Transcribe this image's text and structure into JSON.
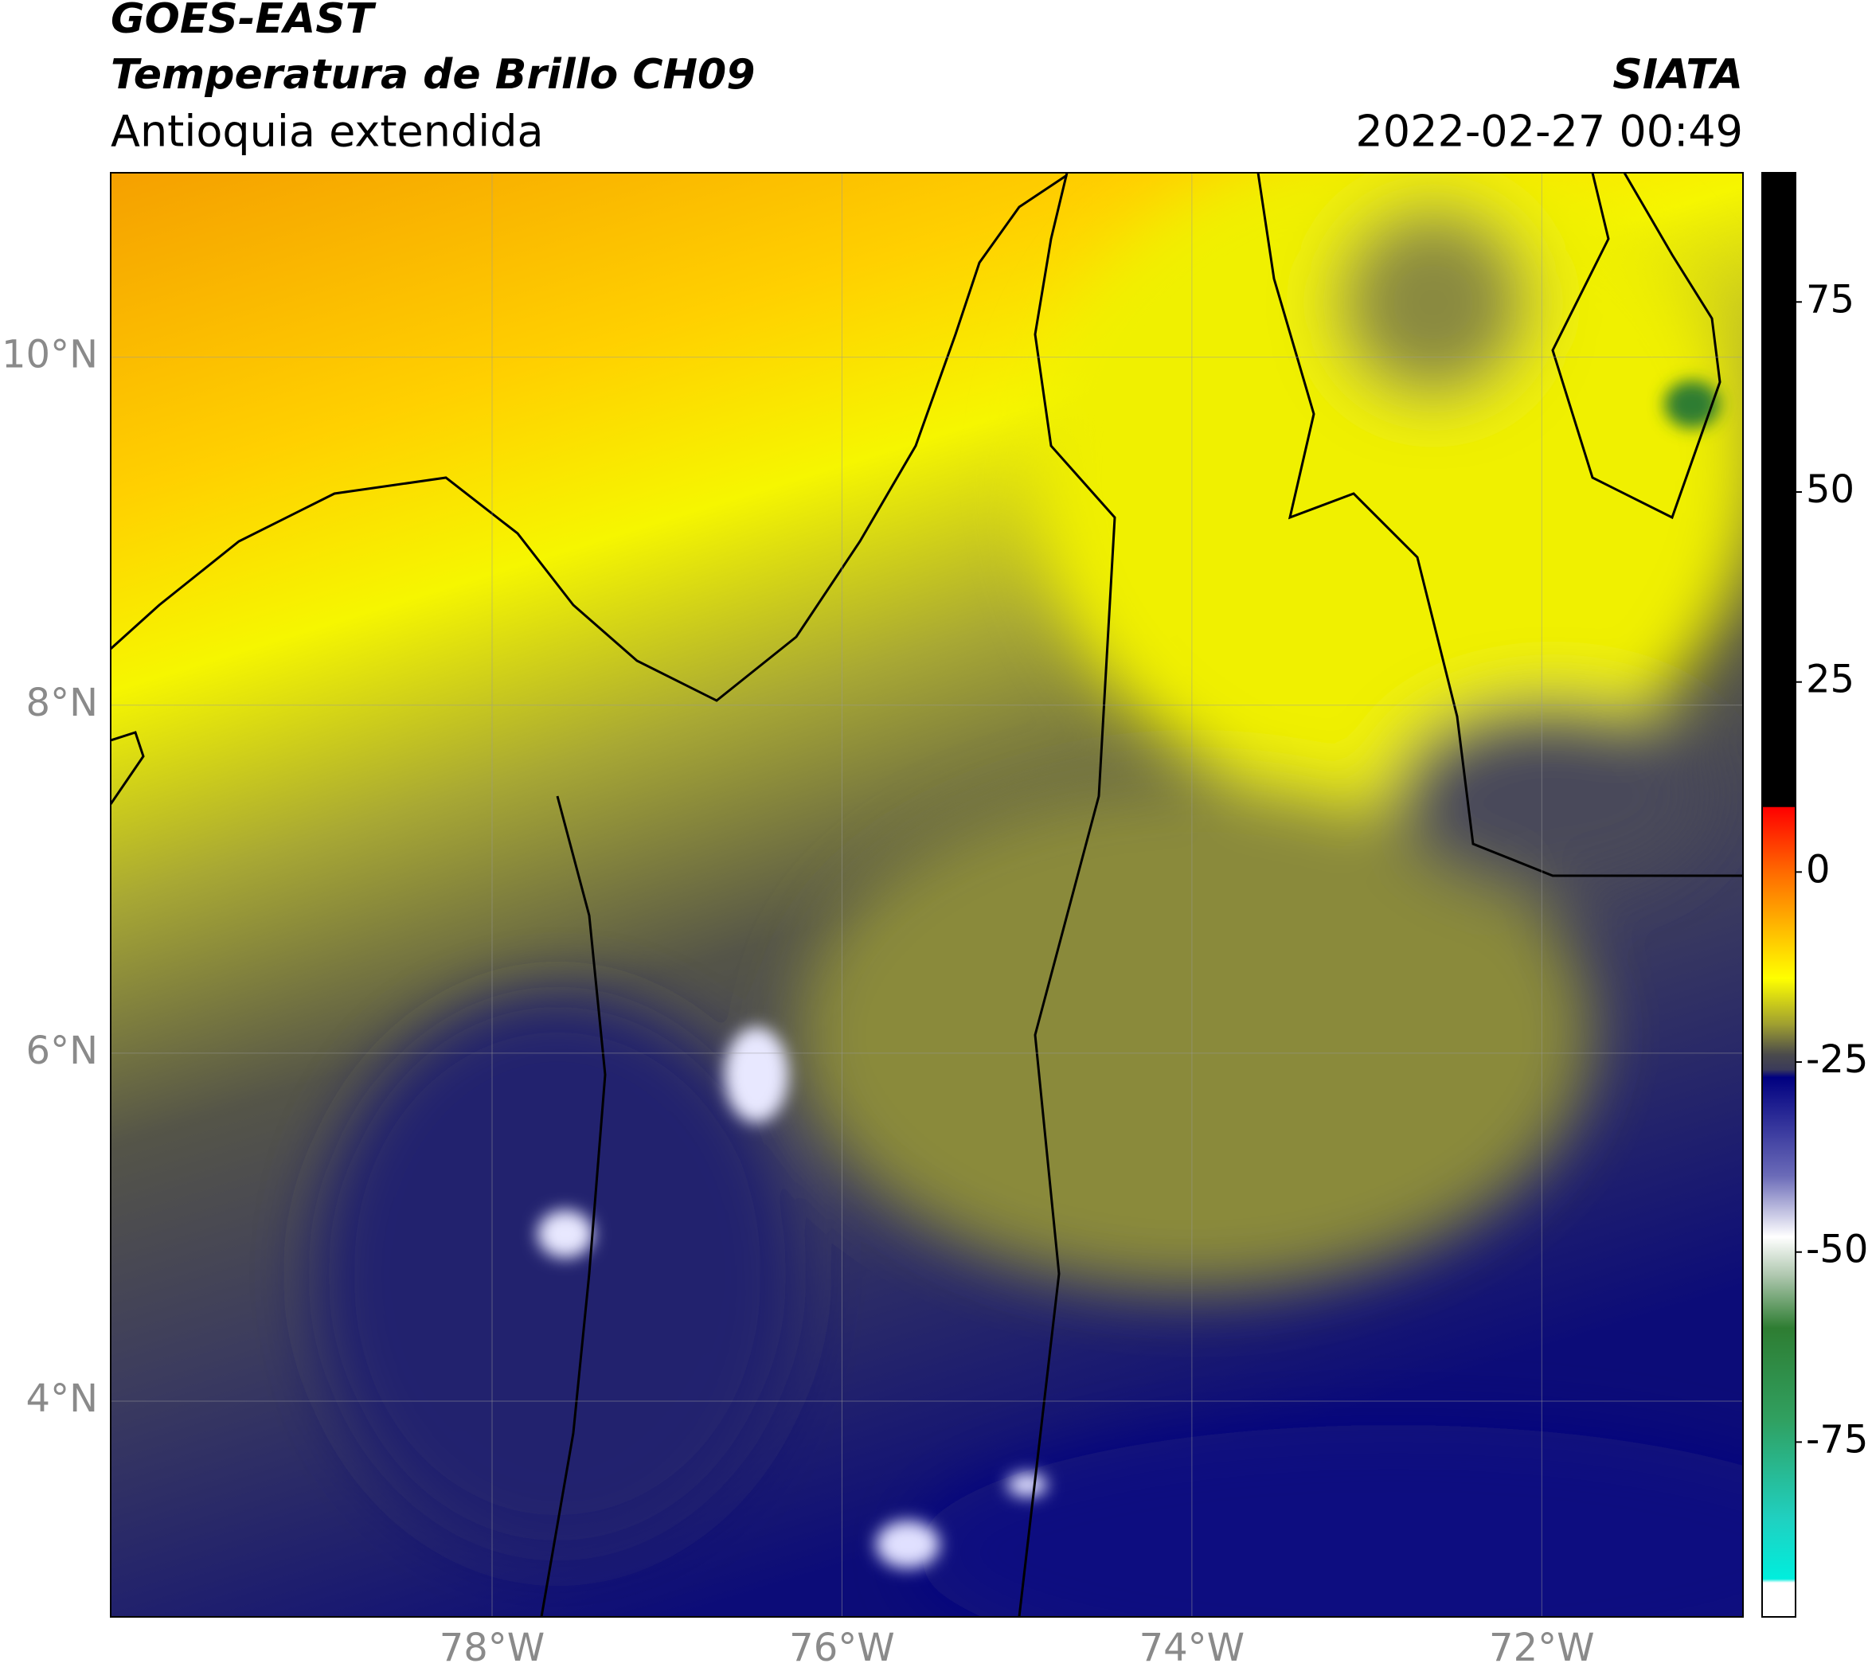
{
  "header": {
    "title": "GOES-EAST",
    "subtitle": "Temperatura de Brillo CH09",
    "region": "Antioquia extendida",
    "source": "SIATA",
    "datetime": "2022-02-27 00:49"
  },
  "map": {
    "lon_range": [
      -80.18,
      -70.85
    ],
    "lat_range": [
      2.76,
      11.06
    ],
    "lon_ticks": [
      {
        "value": -78,
        "label": "78°W"
      },
      {
        "value": -76,
        "label": "76°W"
      },
      {
        "value": -74,
        "label": "74°W"
      },
      {
        "value": -72,
        "label": "72°W"
      }
    ],
    "lat_ticks": [
      {
        "value": 10,
        "label": "10°N"
      },
      {
        "value": 8,
        "label": "8°N"
      },
      {
        "value": 6,
        "label": "6°N"
      },
      {
        "value": 4,
        "label": "4°N"
      }
    ],
    "grid": true
  },
  "colorbar": {
    "range": [
      -98,
      92
    ],
    "ticks": [
      75,
      50,
      25,
      0,
      -25,
      -50,
      -75
    ],
    "stops": [
      {
        "value": 92,
        "color": "#000000"
      },
      {
        "value": 8.6,
        "color": "#000000"
      },
      {
        "value": 8.5,
        "color": "#ff0000"
      },
      {
        "value": 0,
        "color": "#ff6a00"
      },
      {
        "value": -8,
        "color": "#ffc000"
      },
      {
        "value": -14,
        "color": "#ffff00"
      },
      {
        "value": -20,
        "color": "#a0a030"
      },
      {
        "value": -24,
        "color": "#4b4b4b"
      },
      {
        "value": -26,
        "color": "#3a3a5a"
      },
      {
        "value": -27,
        "color": "#000080"
      },
      {
        "value": -40,
        "color": "#6b6bb8"
      },
      {
        "value": -48,
        "color": "#ffffff"
      },
      {
        "value": -53,
        "color": "#b0c8b0"
      },
      {
        "value": -60,
        "color": "#2e7d32"
      },
      {
        "value": -72,
        "color": "#30a060"
      },
      {
        "value": -85,
        "color": "#20d0c0"
      },
      {
        "value": -93,
        "color": "#00eedd"
      },
      {
        "value": -93.5,
        "color": "#ffffff"
      },
      {
        "value": -98,
        "color": "#ffffff"
      }
    ]
  }
}
